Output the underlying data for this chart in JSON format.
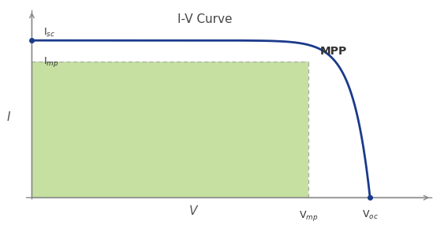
{
  "title": "I-V Curve",
  "title_fontsize": 11,
  "title_color": "#444444",
  "xlabel": "V",
  "ylabel": "I",
  "curve_color": "#1a3a8a",
  "curve_linewidth": 2.0,
  "fill_color": "#c5e0a0",
  "fill_alpha": 1.0,
  "dashed_line_color": "#aaaaaa",
  "Isc": 0.88,
  "Imp": 0.76,
  "Vmp": 0.72,
  "Voc": 0.88,
  "MPP_label": "MPP",
  "Isc_label": "I$_{sc}$",
  "Imp_label": "I$_{mp}$",
  "Vmp_label": "V$_{mp}$",
  "Voc_label": "V$_{oc}$",
  "bg_color": "#ffffff",
  "annotation_fontsize": 9,
  "axis_color": "#888888"
}
